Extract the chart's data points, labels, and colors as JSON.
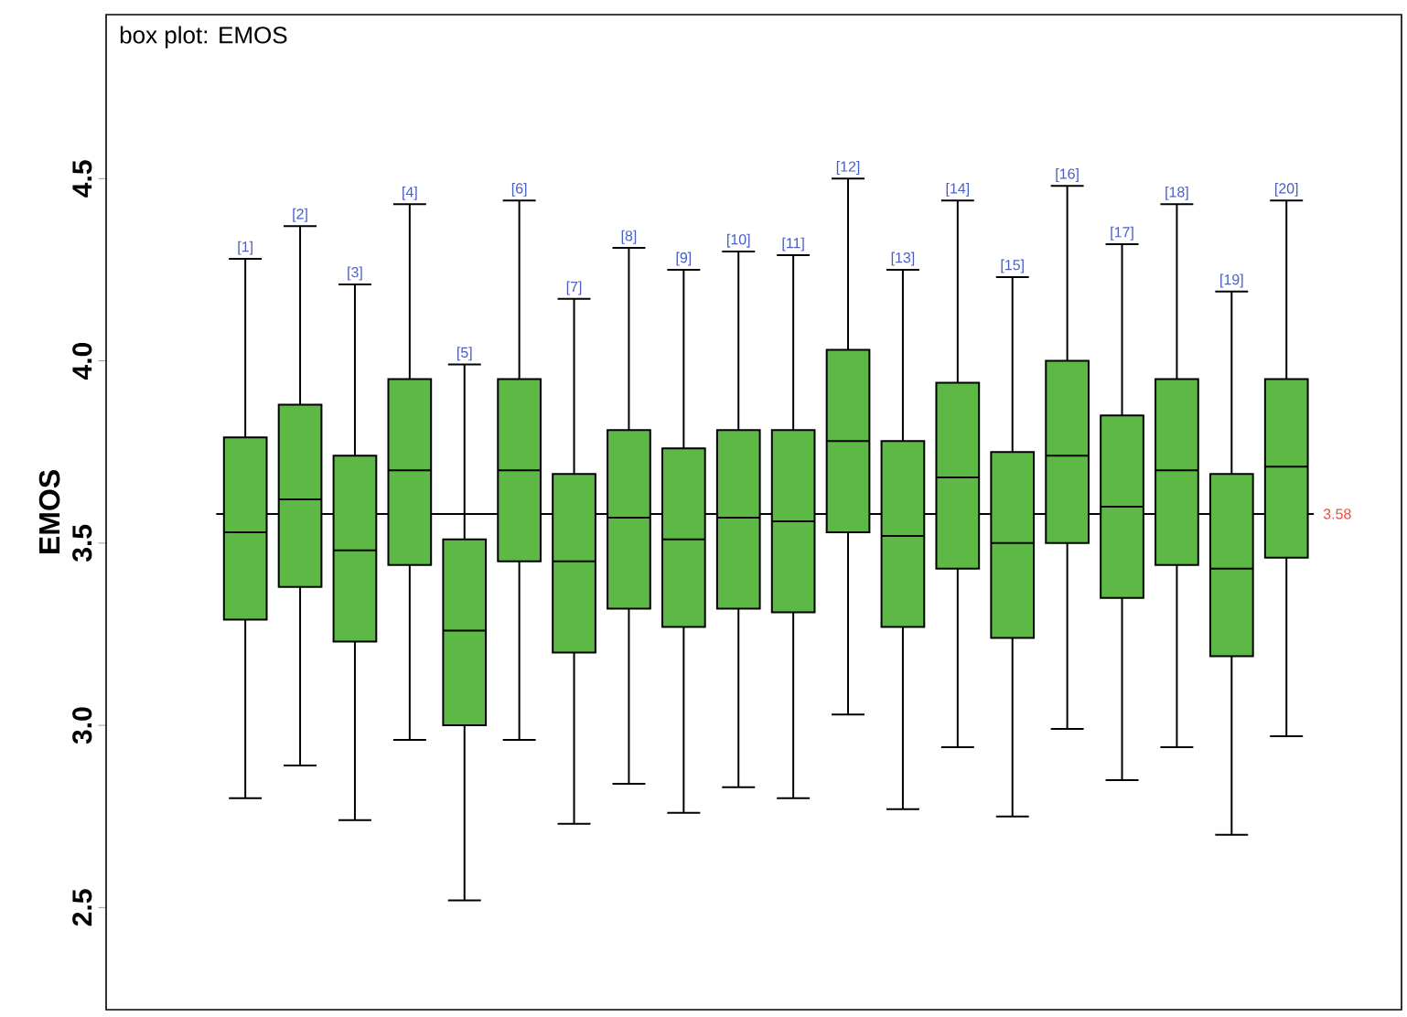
{
  "chart_data": {
    "type": "box",
    "title": "box plot: EMOS",
    "ylabel": "EMOS",
    "color": "#5db845",
    "categories": [
      "[1]",
      "[2]",
      "[3]",
      "[4]",
      "[5]",
      "[6]",
      "[7]",
      "[8]",
      "[9]",
      "[10]",
      "[11]",
      "[12]",
      "[13]",
      "[14]",
      "[15]",
      "[16]",
      "[17]",
      "[18]",
      "[19]",
      "[20]"
    ],
    "boxes": [
      {
        "low": 2.8,
        "q1": 3.29,
        "median": 3.53,
        "q3": 3.79,
        "high": 4.28
      },
      {
        "low": 2.89,
        "q1": 3.38,
        "median": 3.62,
        "q3": 3.88,
        "high": 4.37
      },
      {
        "low": 2.74,
        "q1": 3.23,
        "median": 3.48,
        "q3": 3.74,
        "high": 4.21
      },
      {
        "low": 2.96,
        "q1": 3.44,
        "median": 3.7,
        "q3": 3.95,
        "high": 4.43
      },
      {
        "low": 2.52,
        "q1": 3.0,
        "median": 3.26,
        "q3": 3.51,
        "high": 3.99
      },
      {
        "low": 2.96,
        "q1": 3.45,
        "median": 3.7,
        "q3": 3.95,
        "high": 4.44
      },
      {
        "low": 2.73,
        "q1": 3.2,
        "median": 3.45,
        "q3": 3.69,
        "high": 4.17
      },
      {
        "low": 2.84,
        "q1": 3.32,
        "median": 3.57,
        "q3": 3.81,
        "high": 4.31
      },
      {
        "low": 2.76,
        "q1": 3.27,
        "median": 3.51,
        "q3": 3.76,
        "high": 4.25
      },
      {
        "low": 2.83,
        "q1": 3.32,
        "median": 3.57,
        "q3": 3.81,
        "high": 4.3
      },
      {
        "low": 2.8,
        "q1": 3.31,
        "median": 3.56,
        "q3": 3.81,
        "high": 4.29
      },
      {
        "low": 3.03,
        "q1": 3.53,
        "median": 3.78,
        "q3": 4.03,
        "high": 4.5
      },
      {
        "low": 2.77,
        "q1": 3.27,
        "median": 3.52,
        "q3": 3.78,
        "high": 4.25
      },
      {
        "low": 2.94,
        "q1": 3.43,
        "median": 3.68,
        "q3": 3.94,
        "high": 4.44
      },
      {
        "low": 2.75,
        "q1": 3.24,
        "median": 3.5,
        "q3": 3.75,
        "high": 4.23
      },
      {
        "low": 2.99,
        "q1": 3.5,
        "median": 3.74,
        "q3": 4.0,
        "high": 4.48
      },
      {
        "low": 2.85,
        "q1": 3.35,
        "median": 3.6,
        "q3": 3.85,
        "high": 4.32
      },
      {
        "low": 2.94,
        "q1": 3.44,
        "median": 3.7,
        "q3": 3.95,
        "high": 4.43
      },
      {
        "low": 2.7,
        "q1": 3.19,
        "median": 3.43,
        "q3": 3.69,
        "high": 4.19
      },
      {
        "low": 2.97,
        "q1": 3.46,
        "median": 3.71,
        "q3": 3.95,
        "high": 4.44
      }
    ],
    "ref_lines": [
      {
        "axis": "y",
        "value": 3.58,
        "label": "3.58"
      }
    ],
    "ylim": [
      2.22,
      4.95
    ],
    "yticks": [
      2.5,
      {
        "value": 3,
        "label": "3.0"
      },
      3.5,
      {
        "value": 4,
        "label": "4.0"
      },
      4.5
    ],
    "tick_labels": "y"
  }
}
